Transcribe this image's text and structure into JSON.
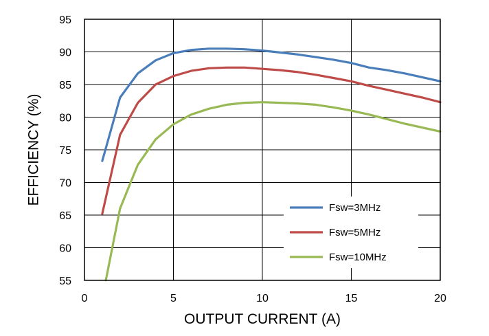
{
  "chart_data": {
    "type": "line",
    "xlabel": "OUTPUT CURRENT (A)",
    "ylabel": "EFFICIENCY (%)",
    "xlim": [
      0,
      20
    ],
    "ylim": [
      55,
      95
    ],
    "xticks": [
      0,
      5,
      10,
      15,
      20
    ],
    "yticks": [
      55,
      60,
      65,
      70,
      75,
      80,
      85,
      90,
      95
    ],
    "grid": true,
    "legend_position": "bottom-right",
    "series": [
      {
        "name": "Fsw=3MHz",
        "color": "#4a7ebb",
        "x": [
          1,
          2,
          3,
          4,
          5,
          6,
          7,
          8,
          9,
          10,
          11,
          12,
          13,
          14,
          15,
          16,
          17,
          18,
          19,
          20
        ],
        "y": [
          73.3,
          83.0,
          86.7,
          88.7,
          89.8,
          90.3,
          90.5,
          90.5,
          90.4,
          90.2,
          89.9,
          89.6,
          89.2,
          88.8,
          88.3,
          87.6,
          87.2,
          86.7,
          86.1,
          85.5
        ]
      },
      {
        "name": "Fsw=5MHz",
        "color": "#be4b48",
        "x": [
          1,
          2,
          3,
          4,
          5,
          6,
          7,
          8,
          9,
          10,
          11,
          12,
          13,
          14,
          15,
          16,
          17,
          18,
          19,
          20
        ],
        "y": [
          65.2,
          77.3,
          82.2,
          85.0,
          86.3,
          87.1,
          87.5,
          87.6,
          87.6,
          87.4,
          87.2,
          86.9,
          86.5,
          86.0,
          85.5,
          84.8,
          84.2,
          83.6,
          83.0,
          82.3
        ]
      },
      {
        "name": "Fsw=10MHz",
        "color": "#98b954",
        "x": [
          1.2,
          2,
          3,
          4,
          5,
          6,
          7,
          8,
          9,
          10,
          11,
          12,
          13,
          14,
          15,
          16,
          17,
          18,
          19,
          20
        ],
        "y": [
          55.0,
          66.0,
          72.7,
          76.6,
          78.9,
          80.4,
          81.3,
          81.9,
          82.2,
          82.3,
          82.2,
          82.1,
          81.9,
          81.5,
          81.0,
          80.4,
          79.7,
          79.0,
          78.4,
          77.8
        ]
      }
    ]
  }
}
